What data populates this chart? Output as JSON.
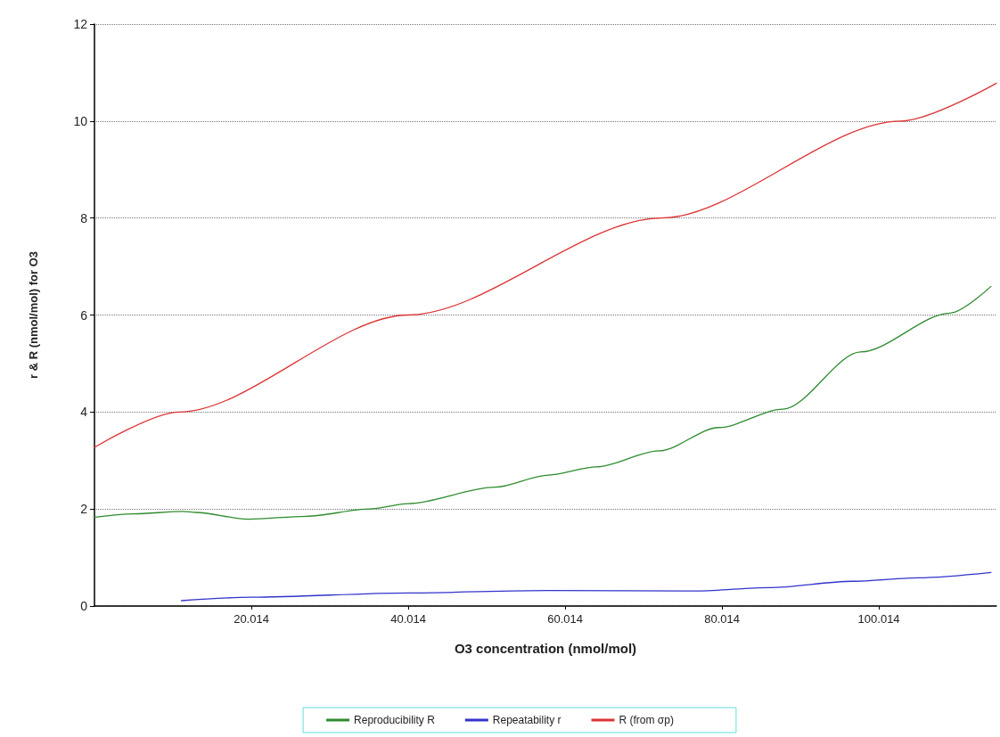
{
  "chart_data": {
    "type": "line",
    "xlabel": "O3 concentration (nmol/mol)",
    "ylabel": "r & R (nmol/mol) for O3",
    "xlim": [
      0.014,
      115
    ],
    "xticks": [
      20.014,
      40.014,
      60.014,
      80.014,
      100.014
    ],
    "ylim": [
      0,
      12
    ],
    "yticks": [
      0,
      2,
      4,
      6,
      8,
      10,
      12
    ],
    "grid": "y",
    "legend": "bottom",
    "marker": "none",
    "line_style": "solid",
    "series": [
      {
        "name": "Reproducibility R",
        "color": "#2e8b2e",
        "x": [
          0.014,
          5,
          11.3,
          13,
          19.6,
          27,
          35.1,
          40,
          51.1,
          57.9,
          64,
          72,
          79.6,
          87.8,
          97.7,
          109.1,
          114.3
        ],
        "values": [
          1.83,
          1.9,
          1.95,
          1.93,
          1.79,
          1.85,
          2.0,
          2.11,
          2.45,
          2.7,
          2.87,
          3.2,
          3.68,
          4.06,
          5.24,
          6.04,
          6.59
        ]
      },
      {
        "name": "Repeatability r",
        "color": "#3333cc",
        "x": [
          11.1,
          20,
          40,
          57.9,
          77,
          86,
          96.6,
          105,
          114.3
        ],
        "values": [
          0.11,
          0.18,
          0.27,
          0.32,
          0.31,
          0.38,
          0.51,
          0.58,
          0.69
        ]
      },
      {
        "name": "R (from σp)",
        "color": "#dd3333",
        "x": [
          0.014,
          10.8,
          40,
          72.3,
          102.8,
          115
        ],
        "values": [
          3.27,
          4,
          6,
          8,
          10,
          10.78
        ]
      }
    ]
  }
}
